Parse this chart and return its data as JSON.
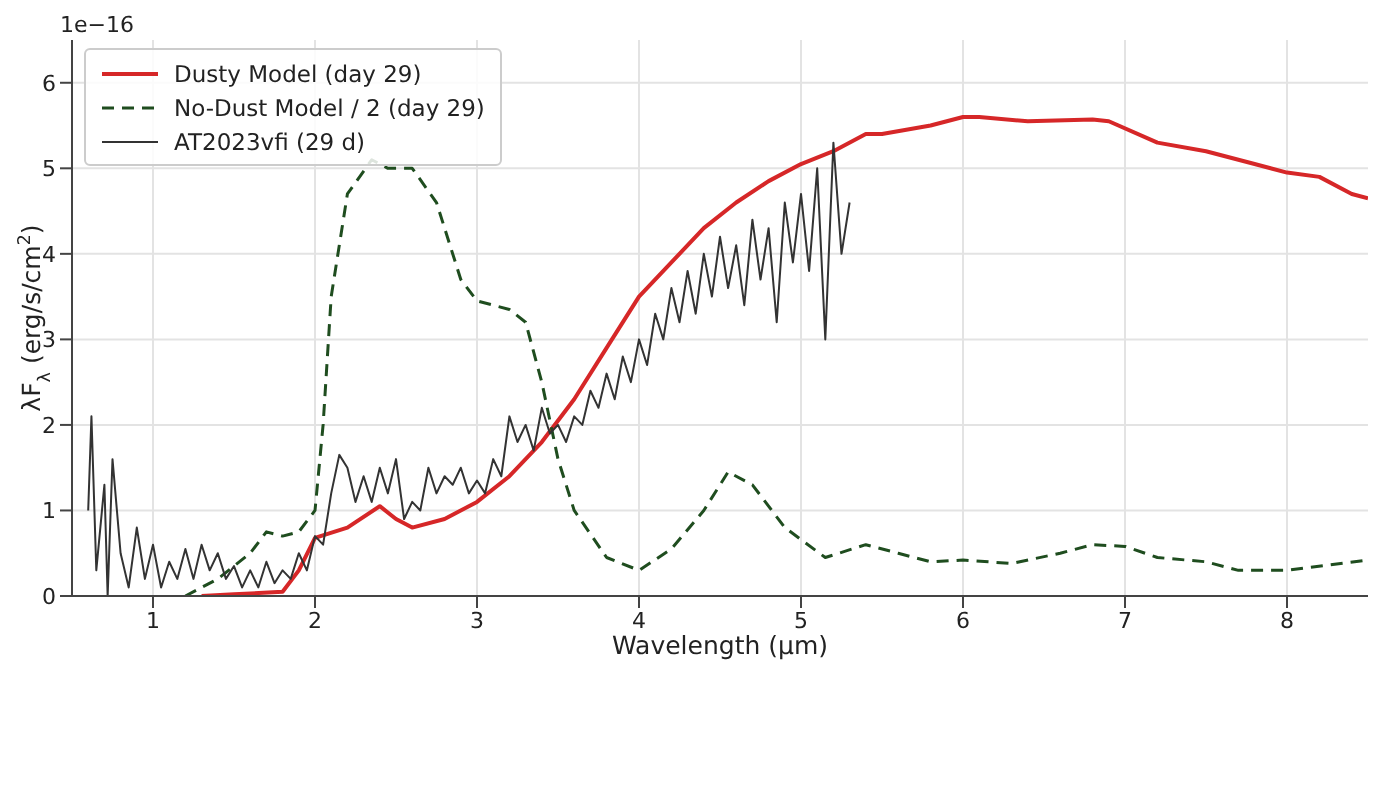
{
  "chart_data": {
    "type": "line",
    "xlabel": "Wavelength (μm)",
    "ylabel": "λF$_{λ}$ (erg/s/cm$^{2}$)",
    "annotations": [
      "1e−16"
    ],
    "xlim": [
      0.5,
      8.5
    ],
    "xticks": [
      1,
      2,
      3,
      4,
      5,
      6,
      7,
      8
    ],
    "ylim": [
      0,
      6.5
    ],
    "yticks": [
      0,
      1,
      2,
      3,
      4,
      5,
      6
    ],
    "grid": true,
    "legend": "top left",
    "marker": "none",
    "series": [
      {
        "name": "Dusty Model (day 29)",
        "color": "#d62728",
        "line_style": "solid",
        "x": [
          1.3,
          1.5,
          1.8,
          1.9,
          2.0,
          2.2,
          2.4,
          2.5,
          2.6,
          2.8,
          3.0,
          3.2,
          3.4,
          3.6,
          3.8,
          4.0,
          4.2,
          4.4,
          4.6,
          4.8,
          5.0,
          5.2,
          5.4,
          5.5,
          5.8,
          6.0,
          6.1,
          6.4,
          6.8,
          6.9,
          7.2,
          7.5,
          7.8,
          8.0,
          8.2,
          8.4,
          8.5
        ],
        "values": [
          0,
          0.02,
          0.05,
          0.3,
          0.68,
          0.8,
          1.05,
          0.9,
          0.8,
          0.9,
          1.1,
          1.4,
          1.8,
          2.3,
          2.9,
          3.5,
          3.9,
          4.3,
          4.6,
          4.85,
          5.05,
          5.2,
          5.4,
          5.4,
          5.5,
          5.6,
          5.6,
          5.55,
          5.57,
          5.55,
          5.3,
          5.2,
          5.05,
          4.95,
          4.9,
          4.7,
          4.65
        ]
      },
      {
        "name": "No-Dust Model / 2 (day 29)",
        "color": "#1f4d1f",
        "line_style": "dashed",
        "x": [
          1.2,
          1.4,
          1.6,
          1.7,
          1.8,
          1.9,
          2.0,
          2.05,
          2.1,
          2.2,
          2.35,
          2.45,
          2.6,
          2.75,
          2.9,
          3.0,
          3.2,
          3.3,
          3.4,
          3.5,
          3.6,
          3.8,
          4.0,
          4.2,
          4.4,
          4.55,
          4.7,
          4.9,
          5.15,
          5.4,
          5.6,
          5.8,
          6.0,
          6.3,
          6.6,
          6.8,
          7.0,
          7.2,
          7.5,
          7.7,
          8.0,
          8.5
        ],
        "values": [
          0,
          0.2,
          0.5,
          0.75,
          0.7,
          0.75,
          1.0,
          2.0,
          3.5,
          4.7,
          5.1,
          5.0,
          5.0,
          4.6,
          3.7,
          3.45,
          3.35,
          3.2,
          2.5,
          1.6,
          1.0,
          0.45,
          0.3,
          0.55,
          1.0,
          1.45,
          1.3,
          0.8,
          0.45,
          0.6,
          0.5,
          0.4,
          0.42,
          0.38,
          0.5,
          0.6,
          0.58,
          0.45,
          0.4,
          0.3,
          0.3,
          0.42
        ]
      },
      {
        "name": "AT2023vfi (29 d)",
        "color": "#333333",
        "line_style": "solid",
        "x": [
          0.6,
          0.62,
          0.65,
          0.7,
          0.72,
          0.75,
          0.8,
          0.85,
          0.9,
          0.95,
          1.0,
          1.05,
          1.1,
          1.15,
          1.2,
          1.25,
          1.3,
          1.35,
          1.4,
          1.45,
          1.5,
          1.55,
          1.6,
          1.65,
          1.7,
          1.75,
          1.8,
          1.85,
          1.9,
          1.95,
          2.0,
          2.05,
          2.1,
          2.15,
          2.2,
          2.25,
          2.3,
          2.35,
          2.4,
          2.45,
          2.5,
          2.55,
          2.6,
          2.65,
          2.7,
          2.75,
          2.8,
          2.85,
          2.9,
          2.95,
          3.0,
          3.05,
          3.1,
          3.15,
          3.2,
          3.25,
          3.3,
          3.35,
          3.4,
          3.45,
          3.5,
          3.55,
          3.6,
          3.65,
          3.7,
          3.75,
          3.8,
          3.85,
          3.9,
          3.95,
          4.0,
          4.05,
          4.1,
          4.15,
          4.2,
          4.25,
          4.3,
          4.35,
          4.4,
          4.45,
          4.5,
          4.55,
          4.6,
          4.65,
          4.7,
          4.75,
          4.8,
          4.85,
          4.9,
          4.95,
          5.0,
          5.05,
          5.1,
          5.15,
          5.2,
          5.25,
          5.3
        ],
        "values": [
          1.0,
          2.1,
          0.3,
          1.3,
          0,
          1.6,
          0.5,
          0.1,
          0.8,
          0.2,
          0.6,
          0.1,
          0.4,
          0.2,
          0.55,
          0.2,
          0.6,
          0.3,
          0.5,
          0.2,
          0.35,
          0.1,
          0.3,
          0.1,
          0.4,
          0.15,
          0.3,
          0.2,
          0.5,
          0.3,
          0.7,
          0.6,
          1.2,
          1.65,
          1.5,
          1.1,
          1.4,
          1.1,
          1.5,
          1.2,
          1.6,
          0.9,
          1.1,
          1.0,
          1.5,
          1.2,
          1.4,
          1.3,
          1.5,
          1.2,
          1.35,
          1.2,
          1.6,
          1.4,
          2.1,
          1.8,
          2.0,
          1.7,
          2.2,
          1.9,
          2.0,
          1.8,
          2.1,
          2.0,
          2.4,
          2.2,
          2.6,
          2.3,
          2.8,
          2.5,
          3.0,
          2.7,
          3.3,
          3.0,
          3.6,
          3.2,
          3.8,
          3.3,
          4.0,
          3.5,
          4.2,
          3.6,
          4.1,
          3.4,
          4.4,
          3.7,
          4.3,
          3.2,
          4.6,
          3.9,
          4.7,
          3.8,
          5.0,
          3.0,
          5.3,
          4.0,
          4.6
        ]
      }
    ]
  }
}
